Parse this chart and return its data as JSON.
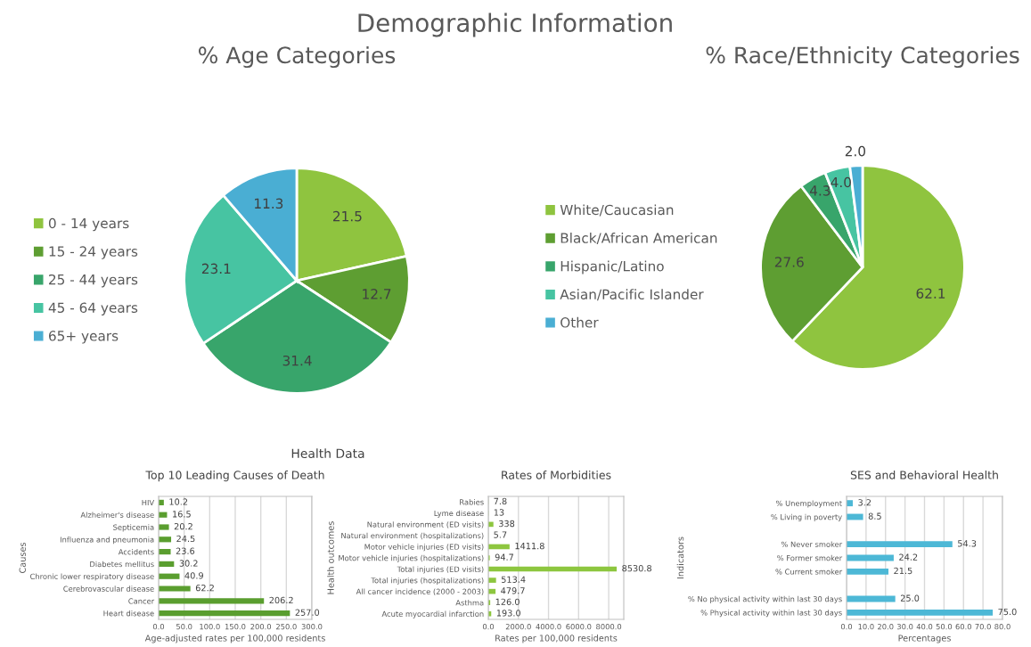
{
  "chart_data": [
    {
      "type": "pie",
      "title": "% Age Categories",
      "annotations": [
        "Demographic Information"
      ],
      "categories": [
        "0 - 14 years",
        "15 - 24 years",
        "25 - 44 years",
        "45 - 64 years",
        "65+ years"
      ],
      "values": [
        21.5,
        12.7,
        31.4,
        23.1,
        11.3
      ],
      "colors": [
        "#8fc43f",
        "#5e9e32",
        "#38a56b",
        "#47c4a2",
        "#4aaed3"
      ],
      "data_labels": true,
      "legend": "left"
    },
    {
      "type": "pie",
      "title": "% Race/Ethnicity Categories",
      "categories": [
        "White/Caucasian",
        "Black/African American",
        "Hispanic/Latino",
        "Asian/Pacific Islander",
        "Other"
      ],
      "values": [
        62.1,
        27.6,
        4.3,
        4.0,
        2.0
      ],
      "value_labels": [
        "62.1",
        "27.6",
        "4.3",
        "4.0",
        "2.0"
      ],
      "colors": [
        "#8fc43f",
        "#5e9e32",
        "#38a56b",
        "#47c4a2",
        "#4aaed3"
      ],
      "legend": "left"
    },
    {
      "type": "bar",
      "orientation": "horizontal",
      "title": "Top 10 Leading Causes of Death",
      "annotations": [
        "Health Data"
      ],
      "xlabel": "Age-adjusted rates per 100,000 residents",
      "ylabel": "Causes",
      "categories": [
        "HIV",
        "Alzheimer's disease",
        "Septicemia",
        "Influenza and pneumonia",
        "Accidents",
        "Diabetes mellitus",
        "Chronic lower respiratory disease",
        "Cerebrovascular disease",
        "Cancer",
        "Heart disease"
      ],
      "values": [
        10.2,
        16.5,
        20.2,
        24.5,
        23.6,
        30.2,
        40.9,
        62.2,
        206.2,
        257.0
      ],
      "value_labels": [
        "10.2",
        "16.5",
        "20.2",
        "24.5",
        "23.6",
        "30.2",
        "40.9",
        "62.2",
        "206.2",
        "257.0"
      ],
      "color": "#5a9e2f",
      "xlim": [
        0,
        300
      ],
      "xticks": [
        {
          "value": 0,
          "label": "0.0"
        },
        {
          "value": 50,
          "label": "50.0"
        },
        {
          "value": 100,
          "label": "100.0"
        },
        {
          "value": 150,
          "label": "150.0"
        },
        {
          "value": 200,
          "label": "200.0"
        },
        {
          "value": 250,
          "label": "250.0"
        },
        {
          "value": 300,
          "label": "300.0"
        }
      ],
      "grid": "x"
    },
    {
      "type": "bar",
      "orientation": "horizontal",
      "title": "Rates of Morbidities",
      "xlabel": "Rates per 100,000 residents",
      "ylabel": "Health outcomes",
      "categories": [
        "Rabies",
        "Lyme disease",
        "Natural environment (ED visits)",
        "Natural environment (hospitalizations)",
        "Motor vehicle injuries (ED visits)",
        "Motor vehicle injuries (hospitalizations)",
        "Total injuries (ED visits)",
        "Total injuries (hospitalizations)",
        "All cancer incidence (2000 - 2003)",
        "Asthma",
        "Acute myocardial infarction"
      ],
      "values": [
        7.8,
        13,
        338,
        5.7,
        1411.8,
        94.7,
        8530.8,
        513.4,
        479.7,
        126.0,
        193.0
      ],
      "value_labels": [
        "7.8",
        "13",
        "338",
        "5.7",
        "1411.8",
        "94.7",
        "8530.8",
        "513.4",
        "479.7",
        "126.0",
        "193.0"
      ],
      "color": "#8dc63f",
      "xlim": [
        0,
        9000
      ],
      "xticks": [
        {
          "value": 0,
          "label": "0.0"
        },
        {
          "value": 2000,
          "label": "2000.0"
        },
        {
          "value": 4000,
          "label": "4000.0"
        },
        {
          "value": 6000,
          "label": "6000.0"
        },
        {
          "value": 8000,
          "label": "8000.0"
        }
      ],
      "grid": "x"
    },
    {
      "type": "bar",
      "orientation": "horizontal",
      "title": "SES and Behavioral Health",
      "xlabel": "Percentages",
      "ylabel": "Indicators",
      "categories": [
        "% Unemployment",
        "% Living in poverty",
        null,
        "% Never smoker",
        "% Former smoker",
        "% Current smoker",
        null,
        "% No physical activity within last 30 days",
        "% Physical activity within last 30 days"
      ],
      "values": [
        3.2,
        8.5,
        null,
        54.3,
        24.2,
        21.5,
        null,
        25.0,
        75.0
      ],
      "value_labels": [
        "3.2",
        "8.5",
        null,
        "54.3",
        "24.2",
        "21.5",
        null,
        "25.0",
        "75.0"
      ],
      "color": "#4db8d6",
      "xlim": [
        0,
        80
      ],
      "xticks": [
        {
          "value": 0,
          "label": "0.0"
        },
        {
          "value": 10,
          "label": "10.0"
        },
        {
          "value": 20,
          "label": "20.0"
        },
        {
          "value": 30,
          "label": "30.0"
        },
        {
          "value": 40,
          "label": "40.0"
        },
        {
          "value": 50,
          "label": "50.0"
        },
        {
          "value": 60,
          "label": "60.0"
        },
        {
          "value": 70,
          "label": "70.0"
        },
        {
          "value": 80,
          "label": "80.0"
        }
      ],
      "grid": "x"
    }
  ]
}
